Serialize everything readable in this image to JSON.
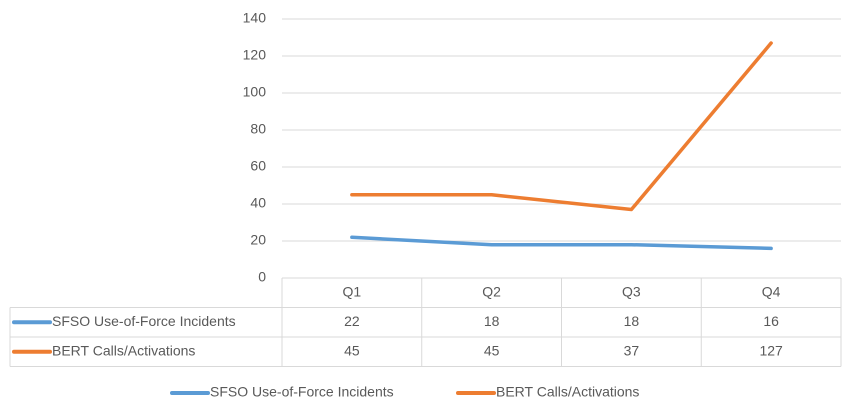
{
  "chart_data": {
    "type": "line",
    "categories": [
      "Q1",
      "Q2",
      "Q3",
      "Q4"
    ],
    "series": [
      {
        "name": "SFSO Use-of-Force Incidents",
        "color": "#5b9bd5",
        "values": [
          22,
          18,
          18,
          16
        ]
      },
      {
        "name": "BERT Calls/Activations",
        "color": "#ed7d31",
        "values": [
          45,
          45,
          37,
          127
        ]
      }
    ],
    "ylim": [
      0,
      140
    ],
    "yticks": [
      0,
      20,
      40,
      60,
      80,
      100,
      120,
      140
    ],
    "grid": true,
    "data_table": true,
    "legend": "bottom"
  }
}
